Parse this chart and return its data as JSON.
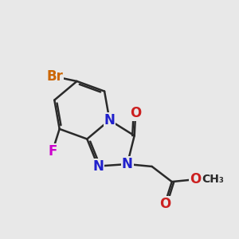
{
  "bg_color": "#e8e8e8",
  "bond_color": "#2a2a2a",
  "bond_width": 1.8,
  "atom_colors": {
    "N": "#2020cc",
    "O": "#cc2020",
    "Br": "#cc6600",
    "F": "#cc00cc",
    "C": "#2a2a2a"
  },
  "font_size_atom": 12,
  "font_size_small": 10,
  "dbo": 0.1
}
